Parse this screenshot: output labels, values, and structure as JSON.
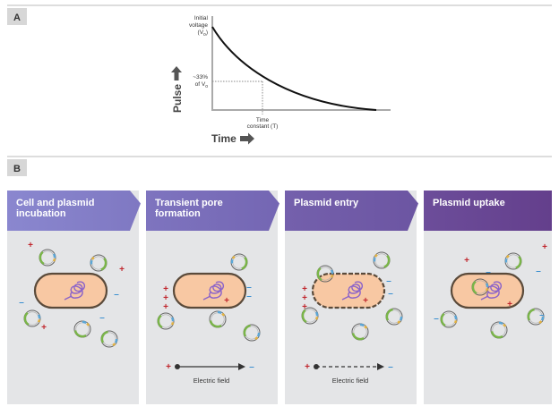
{
  "panel_a": {
    "label": "A",
    "initial": {
      "lines": [
        "Initial",
        "voltage"
      ],
      "prefix": "(V",
      "sub": "o",
      "suffix": ")"
    },
    "threshold": {
      "line1": "~33%",
      "prefix": "of V",
      "sub": "o"
    },
    "time_constant": [
      "Time",
      "constant (T)"
    ],
    "y_label": "Pulse",
    "x_label": "Time"
  },
  "panel_b": {
    "label": "B",
    "steps": [
      {
        "title": [
          "Cell and plasmid",
          "incubation"
        ]
      },
      {
        "title": [
          "Transient pore",
          "formation"
        ],
        "field": "Electric field"
      },
      {
        "title": [
          "Plasmid entry"
        ],
        "field": "Electric field"
      },
      {
        "title": [
          "Plasmid uptake"
        ]
      }
    ]
  },
  "symbols": {
    "plus": "+",
    "minus": "–"
  }
}
